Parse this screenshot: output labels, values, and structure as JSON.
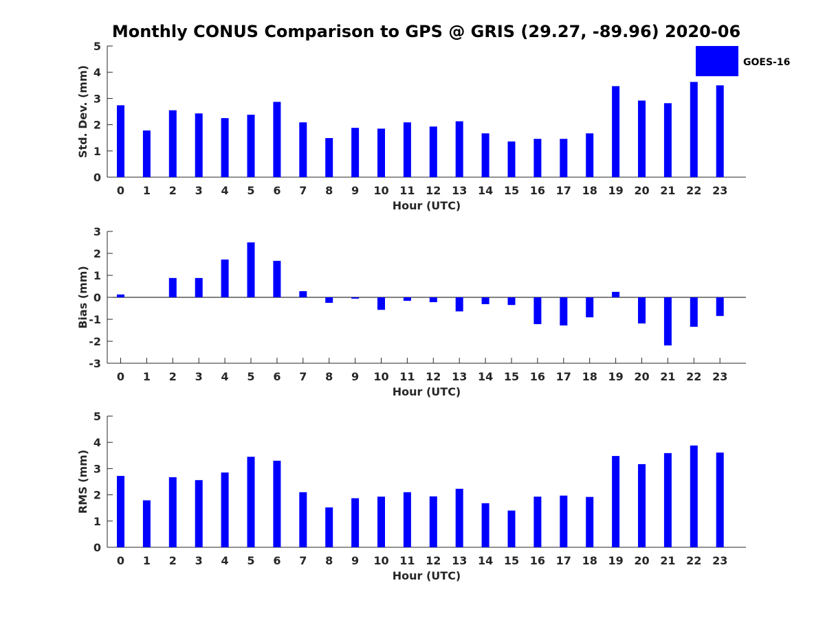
{
  "title": "Monthly CONUS Comparison to GPS @ GRIS (29.27, -89.96) 2020-06",
  "legend": {
    "label": "GOES-16",
    "color": "#0000ff"
  },
  "colors": {
    "bar": "#0000ff",
    "axis": "#262626"
  },
  "chart_data": [
    {
      "type": "bar",
      "categories": [
        "0",
        "1",
        "2",
        "3",
        "4",
        "5",
        "6",
        "7",
        "8",
        "9",
        "10",
        "11",
        "12",
        "13",
        "14",
        "15",
        "16",
        "17",
        "18",
        "19",
        "20",
        "21",
        "22",
        "23"
      ],
      "series": [
        {
          "name": "GOES-16",
          "values": [
            2.74,
            1.78,
            2.55,
            2.43,
            2.25,
            2.38,
            2.87,
            2.09,
            1.49,
            1.88,
            1.85,
            2.09,
            1.93,
            2.13,
            1.67,
            1.36,
            1.46,
            1.46,
            1.67,
            3.47,
            2.92,
            2.82,
            3.63,
            3.5
          ]
        }
      ],
      "xlabel": "Hour (UTC)",
      "ylabel": "Std. Dev. (mm)",
      "ylim": [
        0,
        5
      ],
      "yticks": [
        0,
        1,
        2,
        3,
        4,
        5
      ]
    },
    {
      "type": "bar",
      "categories": [
        "0",
        "1",
        "2",
        "3",
        "4",
        "5",
        "6",
        "7",
        "8",
        "9",
        "10",
        "11",
        "12",
        "13",
        "14",
        "15",
        "16",
        "17",
        "18",
        "19",
        "20",
        "21",
        "22",
        "23"
      ],
      "series": [
        {
          "name": "GOES-16",
          "values": [
            0.13,
            0,
            0.88,
            0.88,
            1.72,
            2.5,
            1.66,
            0.28,
            -0.25,
            -0.06,
            -0.57,
            -0.16,
            -0.22,
            -0.64,
            -0.31,
            -0.35,
            -1.22,
            -1.28,
            -0.91,
            0.25,
            -1.19,
            -2.19,
            -1.34,
            -0.85
          ]
        }
      ],
      "xlabel": "Hour (UTC)",
      "ylabel": "Bias (mm)",
      "ylim": [
        -3,
        3
      ],
      "yticks": [
        -3,
        -2,
        -1,
        0,
        1,
        2,
        3
      ],
      "zero_line": true
    },
    {
      "type": "bar",
      "categories": [
        "0",
        "1",
        "2",
        "3",
        "4",
        "5",
        "6",
        "7",
        "8",
        "9",
        "10",
        "11",
        "12",
        "13",
        "14",
        "15",
        "16",
        "17",
        "18",
        "19",
        "20",
        "21",
        "22",
        "23"
      ],
      "series": [
        {
          "name": "GOES-16",
          "values": [
            2.72,
            1.79,
            2.67,
            2.56,
            2.85,
            3.45,
            3.3,
            2.1,
            1.52,
            1.87,
            1.93,
            2.1,
            1.94,
            2.23,
            1.68,
            1.4,
            1.93,
            1.97,
            1.92,
            3.48,
            3.17,
            3.59,
            3.88,
            3.61
          ]
        }
      ],
      "xlabel": "Hour (UTC)",
      "ylabel": "RMS (mm)",
      "ylim": [
        0,
        5
      ],
      "yticks": [
        0,
        1,
        2,
        3,
        4,
        5
      ]
    }
  ]
}
